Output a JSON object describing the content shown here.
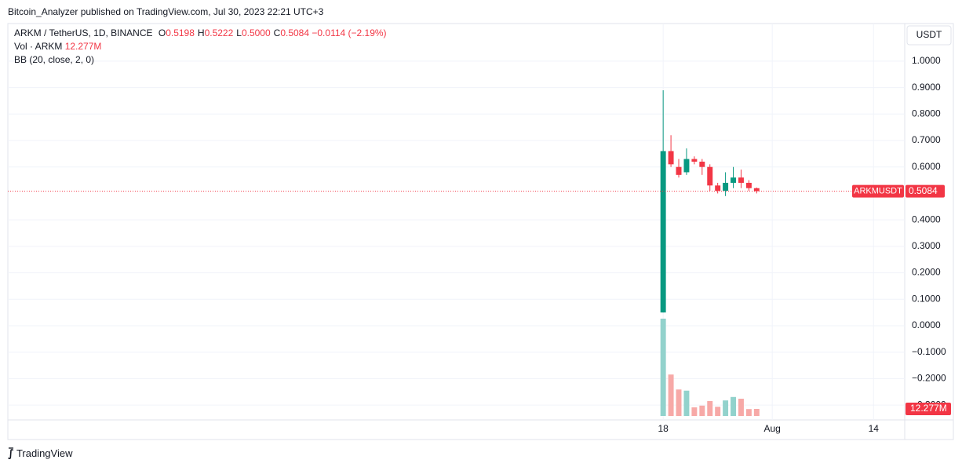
{
  "header": {
    "published": "Bitcoin_Analyzer published on TradingView.com, Jul 30, 2023 22:21 UTC+3",
    "footer": "TradingView"
  },
  "chart_data": {
    "type": "candlestick",
    "symbol": "ARKM / TetherUS, 1D, BINANCE",
    "ohlc": [
      {
        "label": "O",
        "value": "0.5198"
      },
      {
        "label": "H",
        "value": "0.5222"
      },
      {
        "label": "L",
        "value": "0.5000"
      },
      {
        "label": "C",
        "value": "0.5084"
      }
    ],
    "change": "−0.0114 (−2.19%)",
    "volume_title": "Vol · ARKM",
    "volume_label": "12.277M",
    "indicator": "BB (20, close, 2, 0)",
    "currency": "USDT",
    "price_tag": "ARKMUSDT",
    "x": [
      18,
      19,
      20,
      21,
      22,
      23,
      24,
      25,
      26,
      27,
      28,
      29,
      30
    ],
    "open": [
      0.05,
      0.66,
      0.6,
      0.58,
      0.63,
      0.62,
      0.6,
      0.53,
      0.51,
      0.54,
      0.56,
      0.54,
      0.5198
    ],
    "high": [
      0.89,
      0.72,
      0.63,
      0.67,
      0.64,
      0.63,
      0.61,
      0.54,
      0.58,
      0.6,
      0.59,
      0.55,
      0.5222
    ],
    "low": [
      0.05,
      0.6,
      0.56,
      0.57,
      0.61,
      0.57,
      0.51,
      0.5,
      0.49,
      0.52,
      0.52,
      0.51,
      0.5
    ],
    "close": [
      0.66,
      0.61,
      0.57,
      0.63,
      0.62,
      0.6,
      0.53,
      0.51,
      0.54,
      0.56,
      0.54,
      0.52,
      0.5084
    ],
    "volume": [
      169,
      72,
      46,
      44,
      15,
      18,
      26,
      16,
      27,
      33,
      30,
      12,
      12.277
    ],
    "up_color": "#089981",
    "down_color": "#f23645",
    "up_volume_color": "#92d2cc",
    "down_volume_color": "#f7a9a7",
    "xlim": [
      -66.1,
      49.0
    ],
    "xticks": [
      18,
      {
        "value": 32,
        "label": "Aug"
      },
      {
        "value": 45,
        "label": "14"
      }
    ],
    "ylim": [
      -0.356,
      1.142
    ],
    "yticks": [
      {
        "value": 1.0,
        "label": "1.0000"
      },
      {
        "value": 0.9,
        "label": "0.9000"
      },
      {
        "value": 0.8,
        "label": "0.8000"
      },
      {
        "value": 0.7,
        "label": "0.7000"
      },
      {
        "value": 0.6,
        "label": "0.6000"
      },
      {
        "value": 0.4,
        "label": "0.4000"
      },
      {
        "value": 0.3,
        "label": "0.3000"
      },
      {
        "value": 0.2,
        "label": "0.2000"
      },
      {
        "value": 0.1,
        "label": "0.1000"
      },
      {
        "value": 0,
        "label": "0.0000"
      },
      {
        "value": -0.1,
        "label": "−0.1000"
      },
      {
        "value": -0.2,
        "label": "−0.2000"
      },
      {
        "value": -0.3,
        "label": "−0.3000"
      }
    ],
    "grid": true
  }
}
